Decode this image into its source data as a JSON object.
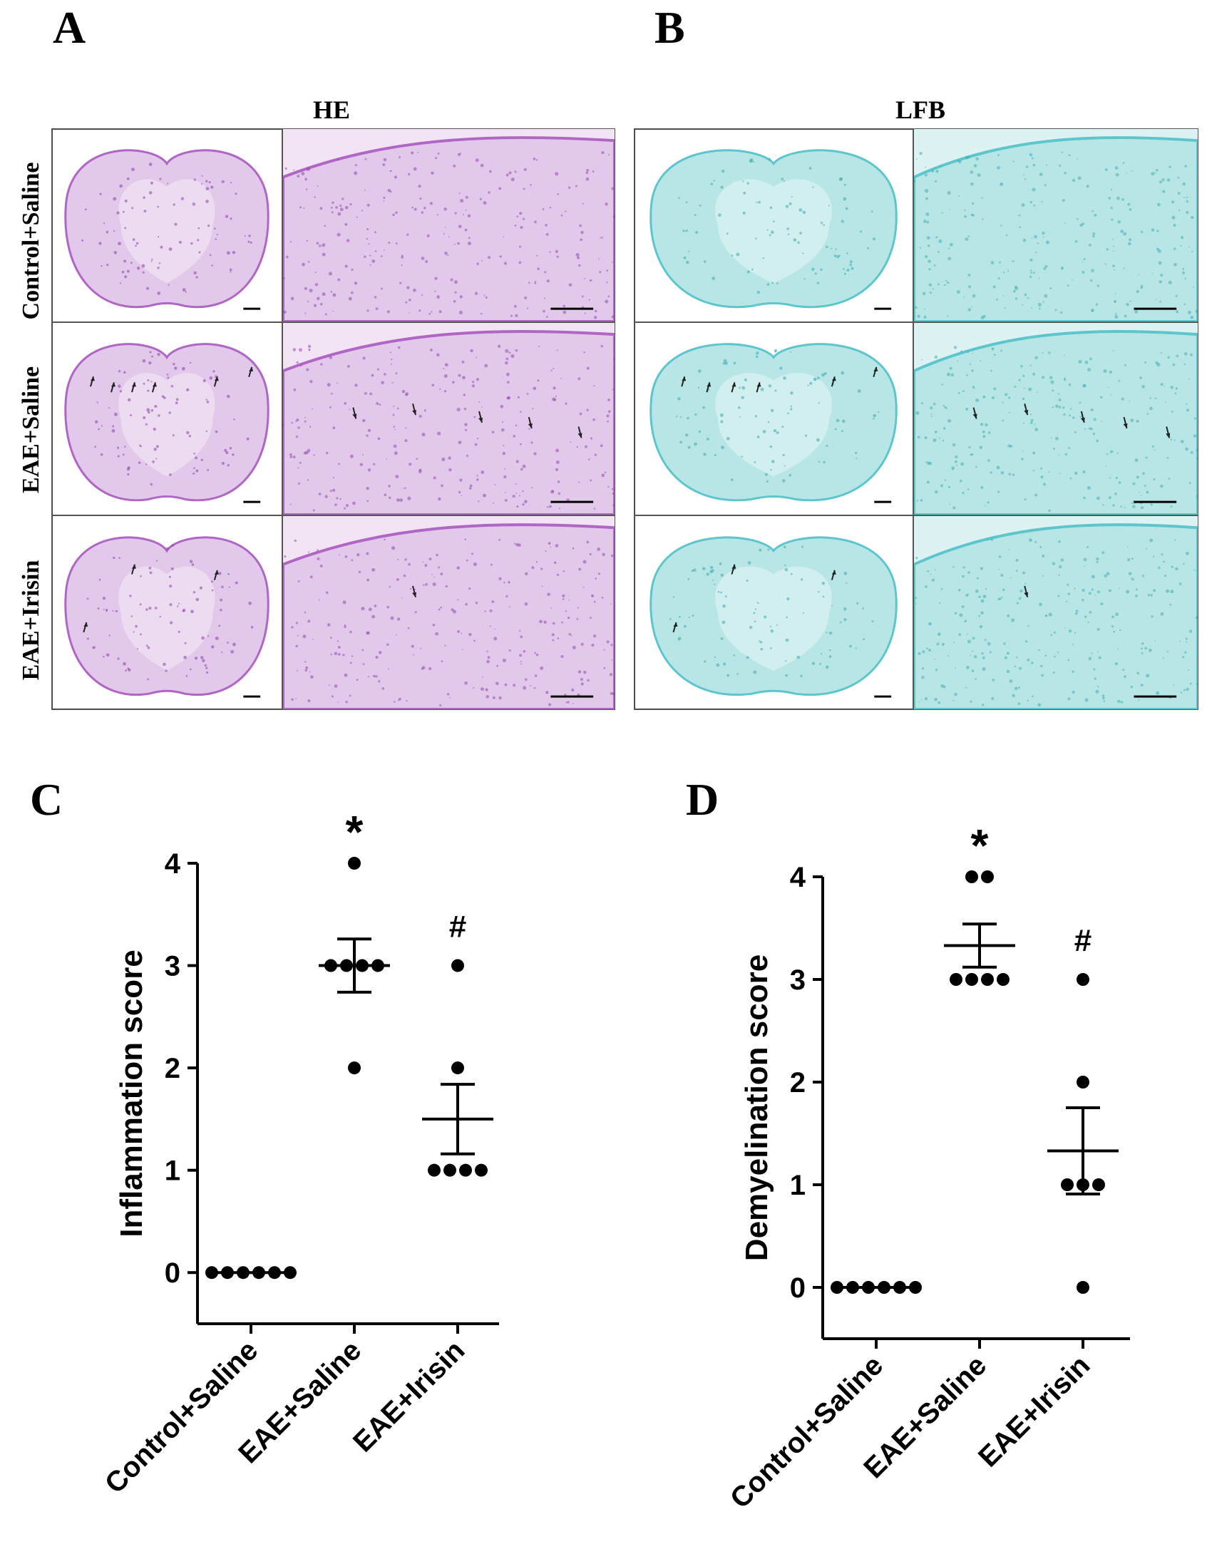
{
  "panels": {
    "a_label": "A",
    "b_label": "B",
    "c_label": "C",
    "d_label": "D"
  },
  "histology": {
    "he_title": "HE",
    "lfb_title": "LFB",
    "rows": [
      "Control+Saline",
      "EAE+Saline",
      "EAE+Irisin"
    ],
    "he_colors": {
      "tissue": "#e2c8ea",
      "edge": "#b066c4",
      "cells": "#8a3fa6"
    },
    "lfb_colors": {
      "tissue": "#b8e6e6",
      "edge": "#5cc6cc",
      "cells": "#3aa7b0"
    }
  },
  "chart_data": [
    {
      "type": "scatter",
      "ylabel": "Inflammation score",
      "categories": [
        "Control+Saline",
        "EAE+Saline",
        "EAE+Irisin"
      ],
      "ylim": [
        -0.5,
        4
      ],
      "yticks": [
        0,
        1,
        2,
        3,
        4
      ],
      "points": [
        [
          0,
          0,
          0,
          0,
          0,
          0
        ],
        [
          4,
          3,
          3,
          3,
          3,
          2
        ],
        [
          3,
          2,
          1,
          1,
          1,
          1
        ]
      ],
      "mean": [
        0,
        3.0,
        1.5
      ],
      "sem": [
        0,
        0.26,
        0.34
      ],
      "annotations": [
        "",
        "*",
        "#"
      ]
    },
    {
      "type": "scatter",
      "ylabel": "Demyelination score",
      "categories": [
        "Control+Saline",
        "EAE+Saline",
        "EAE+Irisin"
      ],
      "ylim": [
        -0.5,
        4
      ],
      "yticks": [
        0,
        1,
        2,
        3,
        4
      ],
      "points": [
        [
          0,
          0,
          0,
          0,
          0,
          0
        ],
        [
          4,
          4,
          3,
          3,
          3,
          3
        ],
        [
          3,
          2,
          1,
          1,
          1,
          0
        ]
      ],
      "mean": [
        0,
        3.33,
        1.33
      ],
      "sem": [
        0,
        0.21,
        0.42
      ],
      "annotations": [
        "",
        "*",
        "#"
      ]
    }
  ]
}
